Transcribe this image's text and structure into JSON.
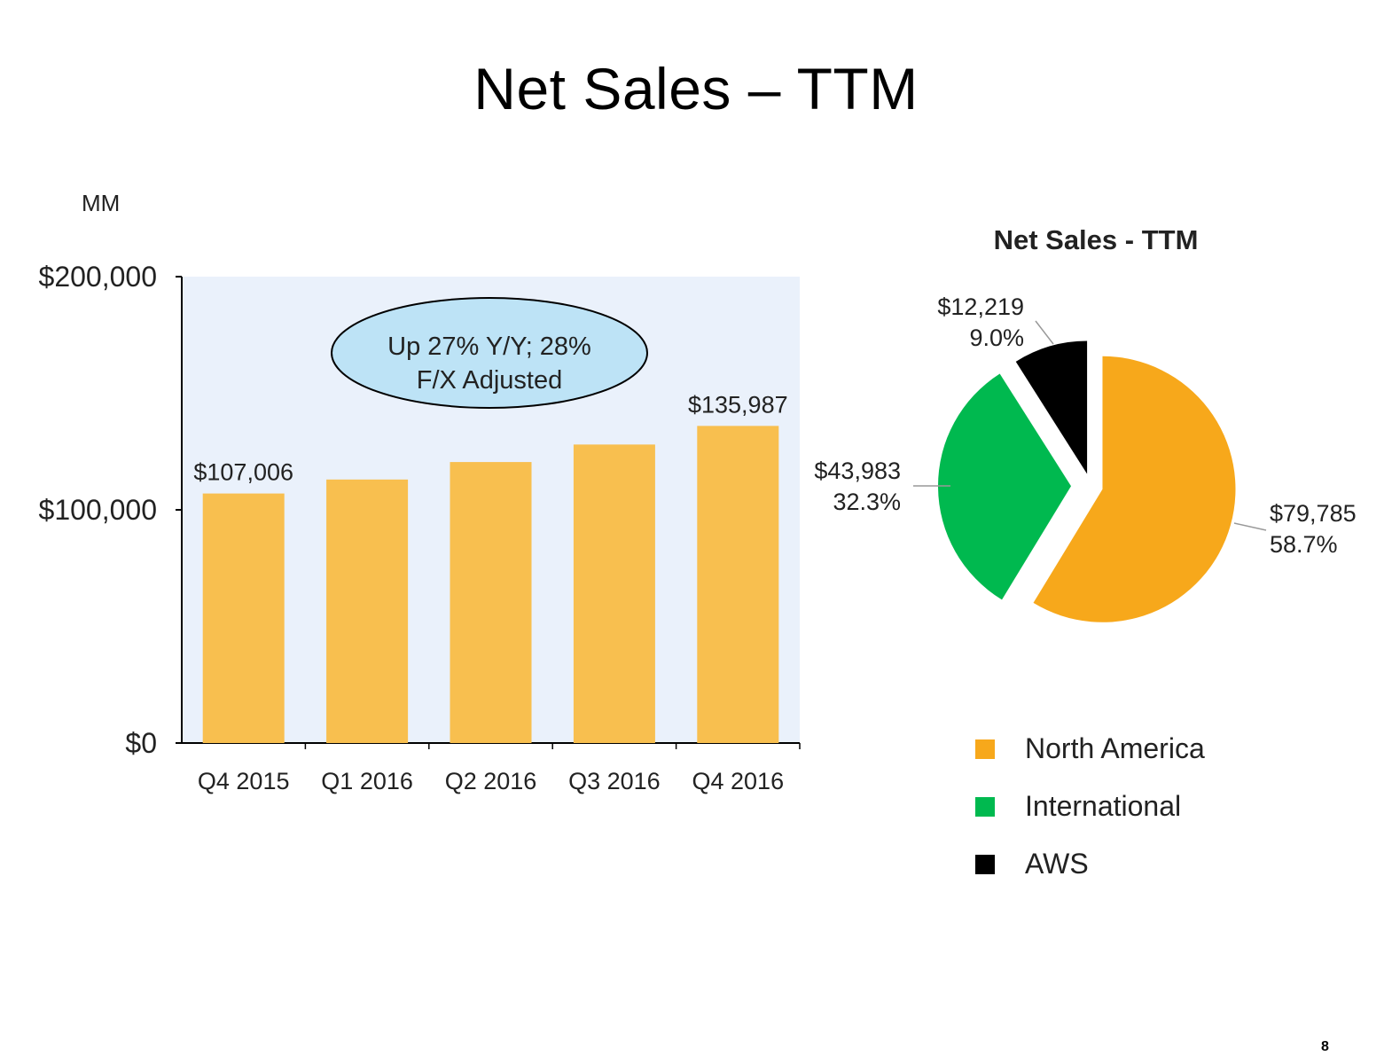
{
  "slide": {
    "title": "Net Sales – TTM",
    "unit_label": "MM",
    "page_number": "8"
  },
  "chart_data": [
    {
      "type": "bar",
      "title": "",
      "xlabel": "",
      "ylabel": "",
      "ylim": [
        0,
        200000
      ],
      "y_ticks": [
        {
          "value": 0,
          "label": "$0"
        },
        {
          "value": 100000,
          "label": "$100,000"
        },
        {
          "value": 200000,
          "label": "$200,000"
        }
      ],
      "categories": [
        "Q4 2015",
        "Q1 2016",
        "Q2 2016",
        "Q3 2016",
        "Q4 2016"
      ],
      "values": [
        107006,
        113000,
        120500,
        128000,
        135987
      ],
      "data_labels": [
        "$107,006",
        "",
        "",
        "",
        "$135,987"
      ],
      "bar_color": "#F8BF4F",
      "plot_background": "#EAF1FB",
      "annotation": {
        "line1": "Up 27% Y/Y; 28%",
        "line2": "F/X Adjusted",
        "fill": "#BDE3F6"
      }
    },
    {
      "type": "pie",
      "title": "Net Sales - TTM",
      "slices": [
        {
          "name": "North America",
          "value": 79785,
          "percent": 58.7,
          "value_label": "$79,785",
          "percent_label": "58.7%",
          "color": "#F7A81B"
        },
        {
          "name": "International",
          "value": 43983,
          "percent": 32.3,
          "value_label": "$43,983",
          "percent_label": "32.3%",
          "color": "#00B94F"
        },
        {
          "name": "AWS",
          "value": 12219,
          "percent": 9.0,
          "value_label": "$12,219",
          "percent_label": "9.0%",
          "color": "#000000"
        }
      ],
      "legend_position": "bottom"
    }
  ]
}
